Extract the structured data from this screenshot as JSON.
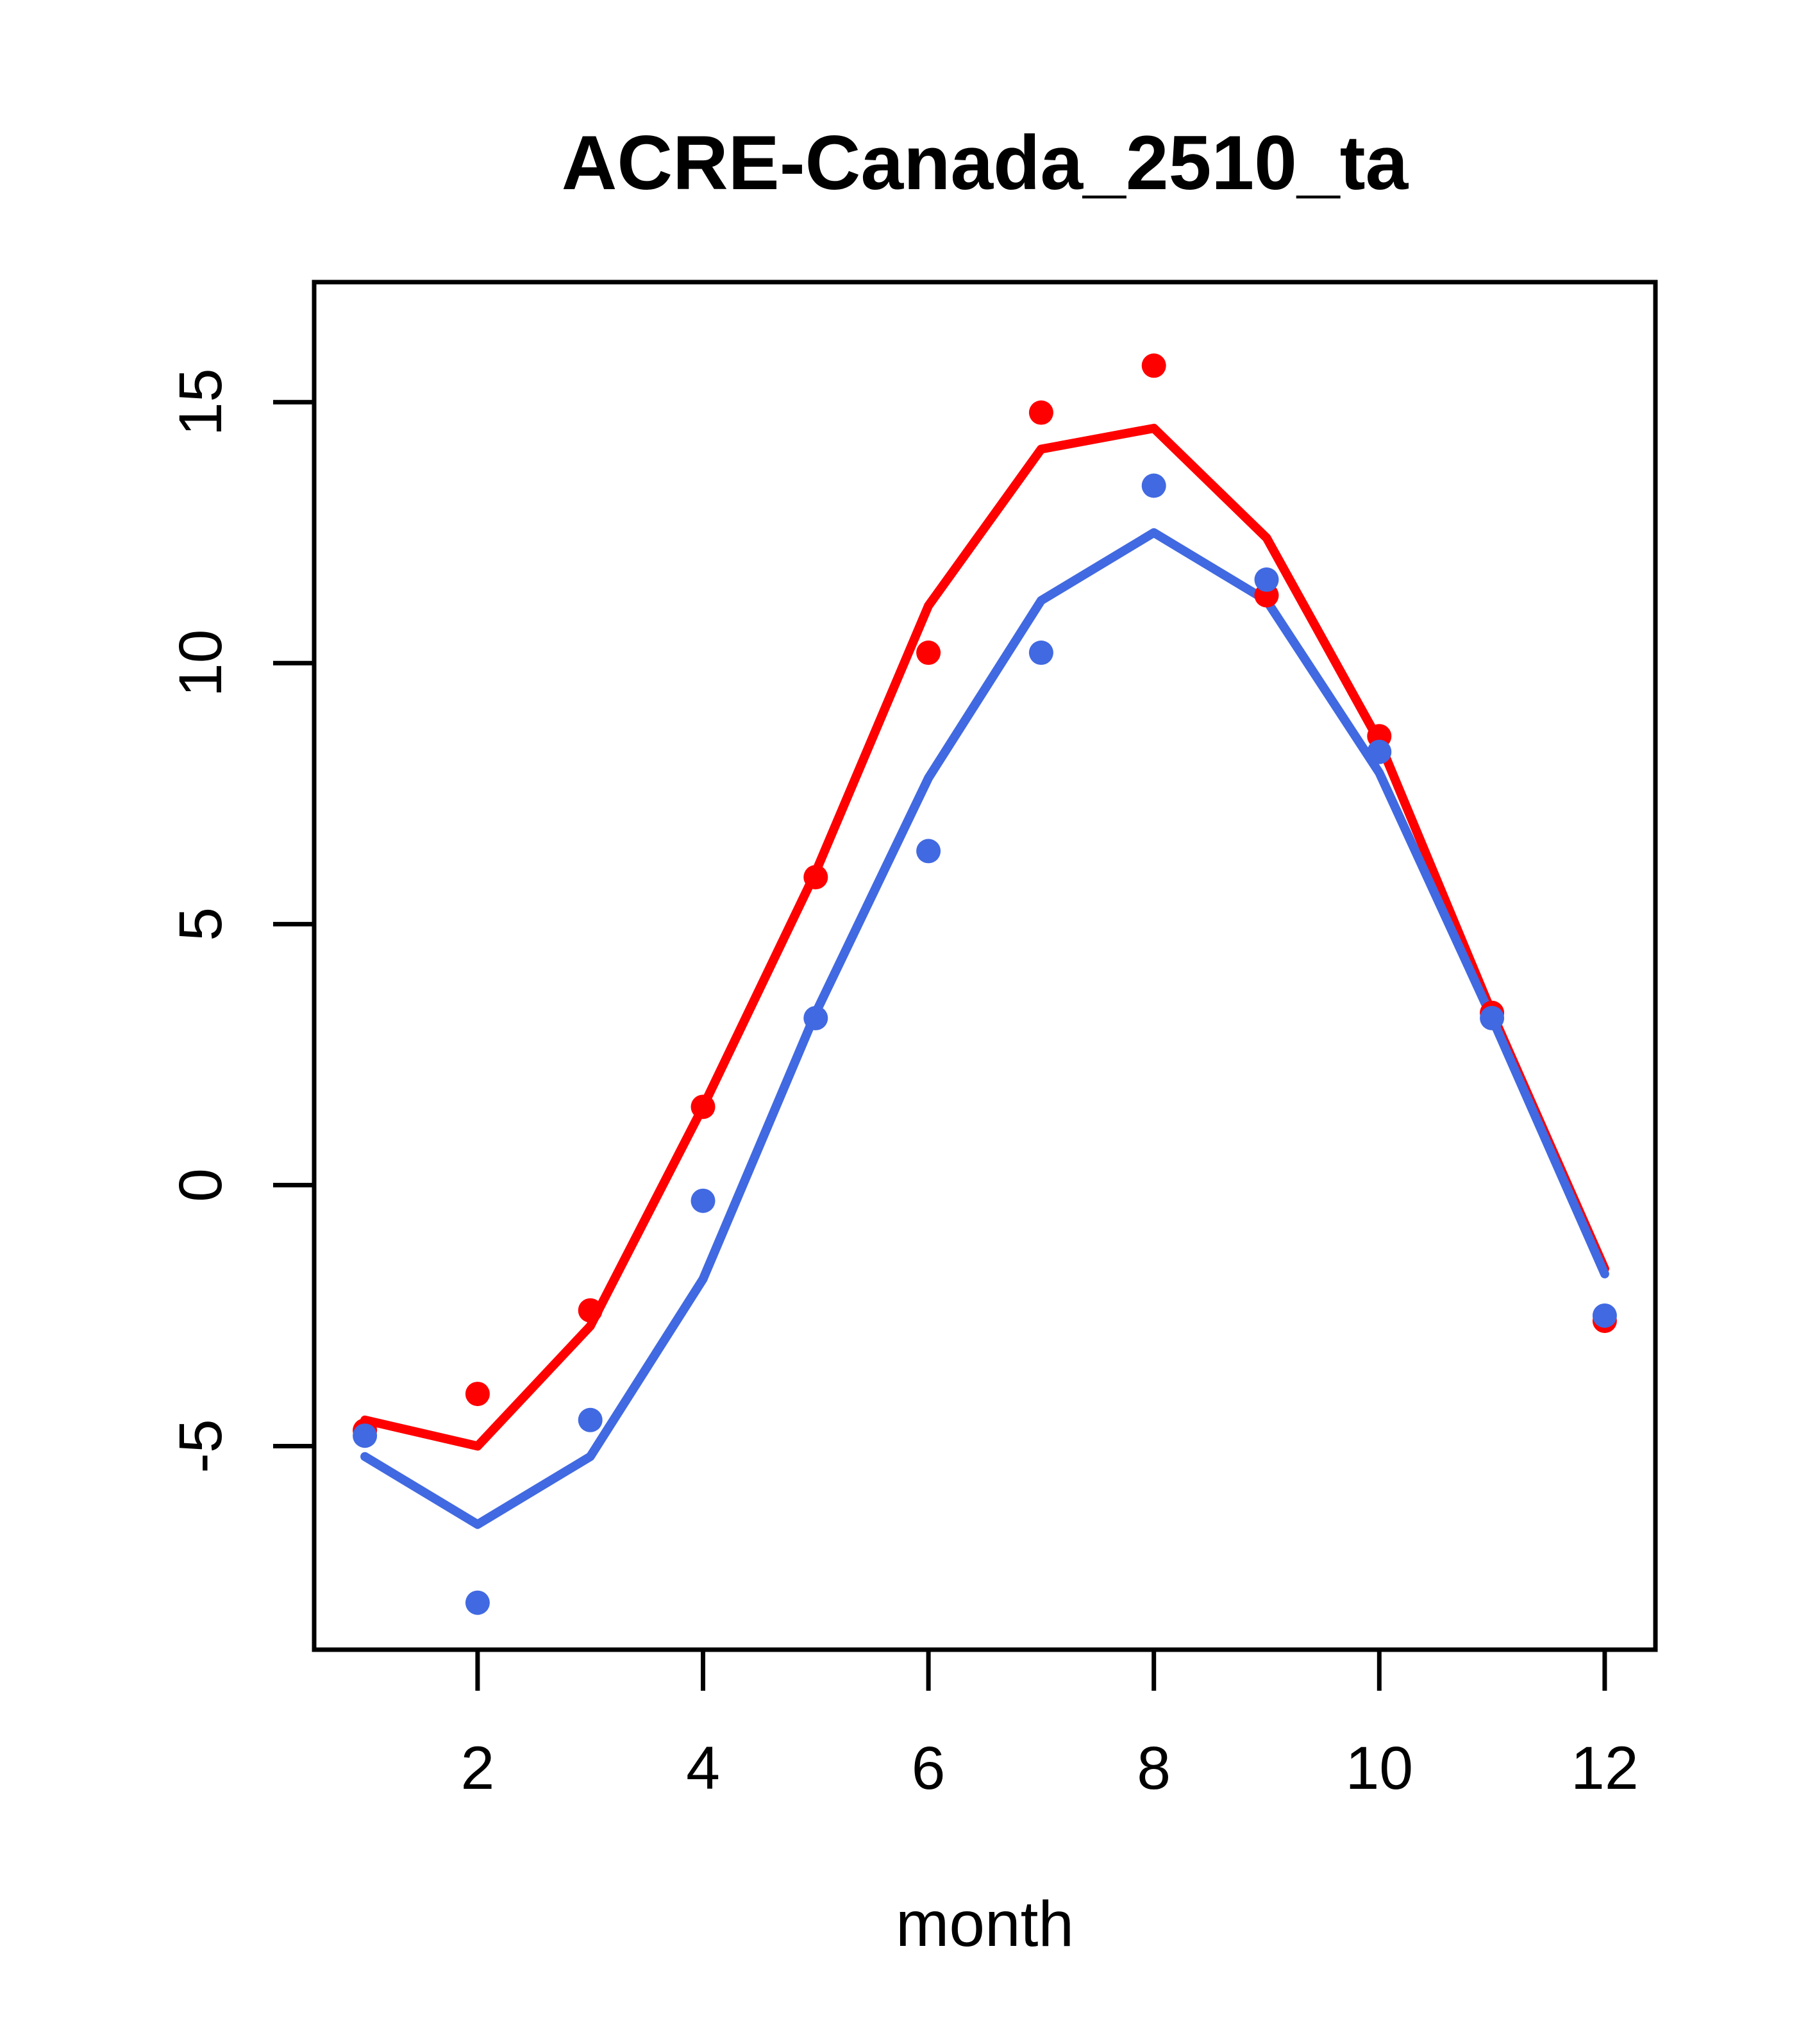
{
  "chart_data": {
    "type": "line",
    "title": "ACRE-Canada_2510_ta",
    "xlabel": "month",
    "ylabel": "",
    "x": [
      1,
      2,
      3,
      4,
      5,
      6,
      7,
      8,
      9,
      10,
      11,
      12
    ],
    "series": [
      {
        "name": "red-line",
        "kind": "line",
        "color_key": "red",
        "values": [
          -4.5,
          -5.0,
          -2.7,
          1.5,
          6.0,
          11.1,
          14.1,
          14.5,
          12.4,
          8.5,
          3.3,
          -1.6
        ]
      },
      {
        "name": "blue-line",
        "kind": "line",
        "color_key": "blue",
        "values": [
          -5.2,
          -6.5,
          -5.2,
          -1.8,
          3.3,
          7.8,
          11.2,
          12.5,
          11.2,
          7.9,
          3.2,
          -1.7
        ]
      },
      {
        "name": "red-points",
        "kind": "points",
        "color_key": "red",
        "values": [
          -4.7,
          -4.0,
          -2.4,
          1.5,
          5.9,
          10.2,
          14.8,
          15.7,
          11.3,
          8.6,
          3.3,
          -2.6
        ]
      },
      {
        "name": "blue-points",
        "kind": "points",
        "color_key": "blue",
        "values": [
          -4.8,
          -8.0,
          -4.5,
          -0.3,
          3.2,
          6.4,
          10.2,
          13.4,
          11.6,
          8.3,
          3.2,
          -2.5
        ]
      }
    ],
    "x_ticks": [
      2,
      4,
      6,
      8,
      10,
      12
    ],
    "y_ticks": [
      -5,
      0,
      5,
      10,
      15
    ],
    "xlim": [
      0.55,
      12.45
    ],
    "ylim": [
      -8.9,
      17.3
    ],
    "grid": false,
    "legend": "none"
  },
  "colors": {
    "red": "#FF0000",
    "blue": "#4169E1",
    "axis": "#000000",
    "background": "#FFFFFF"
  }
}
